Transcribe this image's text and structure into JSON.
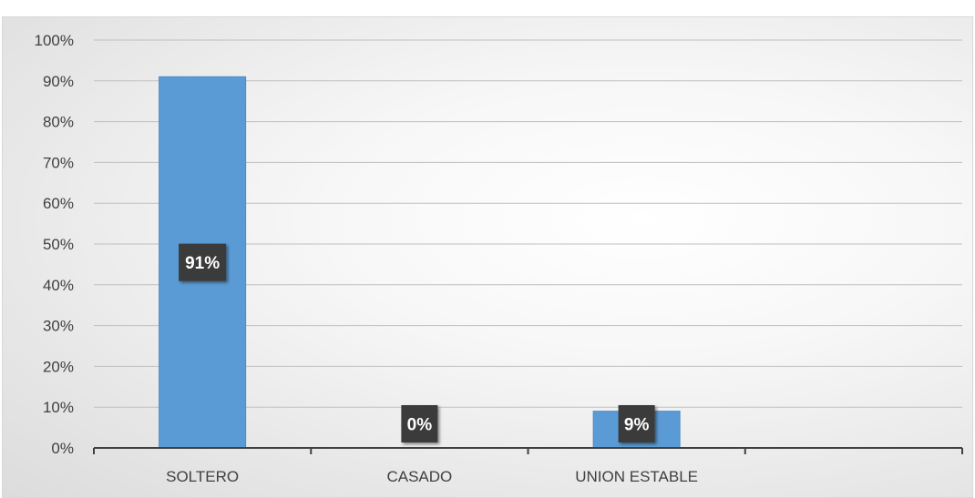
{
  "chart_data": {
    "type": "bar",
    "title": "",
    "xlabel": "",
    "ylabel": "",
    "categories": [
      "SOLTERO",
      "CASADO",
      "UNION ESTABLE",
      ""
    ],
    "values": [
      91,
      0,
      9,
      null
    ],
    "data_labels": [
      "91%",
      "0%",
      "9%",
      ""
    ],
    "ylim": [
      0,
      100
    ],
    "yticks": [
      0,
      10,
      20,
      30,
      40,
      50,
      60,
      70,
      80,
      90,
      100
    ],
    "ytick_labels": [
      "0%",
      "10%",
      "20%",
      "30%",
      "40%",
      "50%",
      "60%",
      "70%",
      "80%",
      "90%",
      "100%"
    ],
    "grid": true,
    "legend": "none",
    "colors": {
      "bar": "#5B9BD5",
      "bar_edge": "#4a8bc8",
      "data_label_bg": "#3a3a3a",
      "grid": "#bfbfbf",
      "axis": "#404040"
    }
  }
}
